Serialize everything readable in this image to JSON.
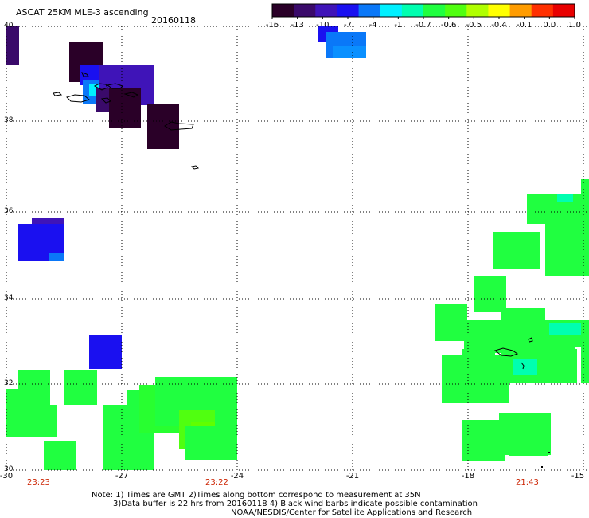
{
  "header": {
    "title": "ASCAT 25KM MLE-3 ascending",
    "date": "20160118"
  },
  "colorbar": {
    "labels": [
      "-16",
      "-13",
      "-10",
      "-7",
      "-4",
      "-1",
      "-0.7",
      "-0.6",
      "-0.5",
      "-0.4",
      "-0.1",
      "0.0",
      "1.0"
    ],
    "colors": [
      "#2a0028",
      "#3a0a6a",
      "#3f14b8",
      "#1a10f0",
      "#0a78f8",
      "#00f0ff",
      "#00ffb0",
      "#20ff40",
      "#50ff10",
      "#b0ff00",
      "#ffff00",
      "#ff9c00",
      "#ff3000",
      "#e80000"
    ]
  },
  "map": {
    "lon_ticks": [
      "-30",
      "-27",
      "-24",
      "-21",
      "-18",
      "-15"
    ],
    "lat_ticks": [
      "40",
      "38",
      "36",
      "34",
      "32",
      "30"
    ],
    "pass_times": [
      "23:23",
      "23:22",
      "21:43"
    ],
    "grid_color": "#000000"
  },
  "notes": {
    "line1": "Note: 1) Times are GMT 2)Times along bottom correspond to measurement at 35N",
    "line2": "3)Data buffer is 22 hrs from 20160118 4) Black wind barbs indicate possible contamination",
    "line3": "NOAA/NESDIS/Center for Satellite Applications and Research"
  }
}
